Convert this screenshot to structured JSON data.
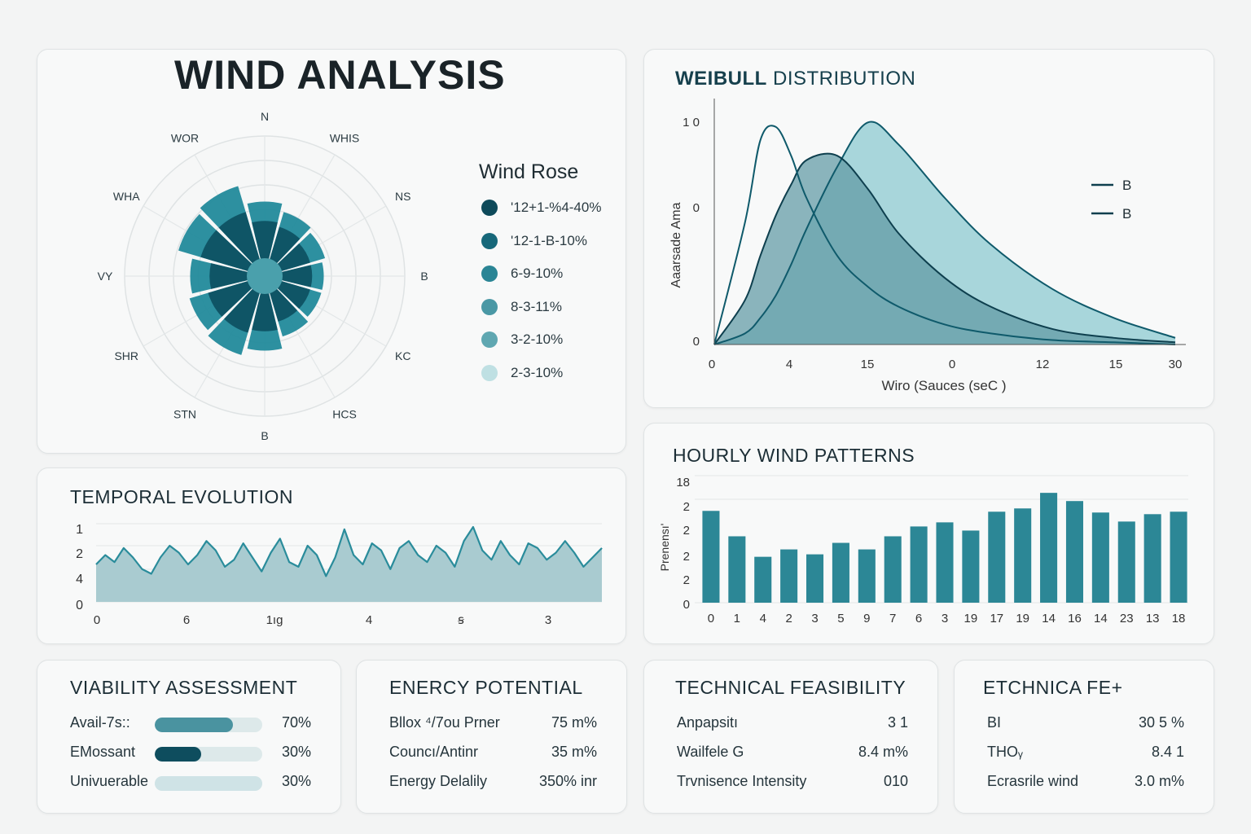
{
  "wind_analysis": {
    "title": "WIND ANALYSIS",
    "directions": [
      "N",
      "WHIS",
      "NS",
      "B",
      "KC",
      "HCS",
      "B",
      "STN",
      "SHR",
      "VY",
      "WHA",
      "WOR"
    ],
    "legend_title": "Wind Rose",
    "legend": [
      {
        "label": "'12+1-%4-40%",
        "color": "#0e4a5a"
      },
      {
        "label": "'12-1-B-10%",
        "color": "#17687a"
      },
      {
        "label": "6-9-10%",
        "color": "#2a8595"
      },
      {
        "label": "8-3-11%",
        "color": "#4a98a5"
      },
      {
        "label": "3-2-10%",
        "color": "#5fa7b1"
      },
      {
        "label": "2-3-10%",
        "color": "#bfe0e3"
      }
    ]
  },
  "weibull": {
    "title_bold": "WEIBULL",
    "title_rest": " DISTRIBUTION",
    "legend": [
      "B",
      "B"
    ],
    "colors": {
      "stroke": "#0f5a6b",
      "fill_a": "#a8d6db",
      "fill_b": "#5f98a4"
    }
  },
  "temporal": {
    "title": "TEMPORAL EVOLUTION",
    "color": "#2a8c9b",
    "fill": "#a9cbd0"
  },
  "hourly": {
    "title": "HOURLY WIND PATTERNS",
    "color": "#2c8796"
  },
  "viability": {
    "title": "VIABILITY ASSESSMENT",
    "rows": [
      {
        "label": "Avail-7s::",
        "value": "70%",
        "level": 0.73,
        "color": "#4a93a0"
      },
      {
        "label": "EMossant",
        "value": "30%",
        "level": 0.43,
        "color": "#0e4d5e"
      },
      {
        "label": "Univuerable",
        "value": "30%",
        "level": 1.0,
        "color": "#cfe3e6"
      }
    ]
  },
  "energy": {
    "title": "ENERCY POTENTIAL",
    "rows": [
      {
        "label": "Bllox ⁴/7ou Prner",
        "value": "75 m%"
      },
      {
        "label": "Councı/Antinr",
        "value": "35 m%"
      },
      {
        "label": "Energy Delalily",
        "value": "350% inr"
      }
    ]
  },
  "technical": {
    "title": "TECHNICAL FEASIBILITY",
    "rows": [
      {
        "label": "Anpapsitı",
        "value": "3 1"
      },
      {
        "label": "Wailfele G",
        "value": "8.4 m%"
      },
      {
        "label": "Trvnisence Intensity",
        "value": "010"
      }
    ]
  },
  "etchnica": {
    "title": "ETCHNICA FE+",
    "rows": [
      {
        "label": "BI",
        "value": "30 5 %"
      },
      {
        "label": "THOᵧ",
        "value": "8.4 1"
      },
      {
        "label": "Ecrasrile wind",
        "value": "3.0 m%"
      }
    ]
  },
  "chart_data": [
    {
      "type": "bar",
      "title": "Wind Rose",
      "categories": [
        "N",
        "WHIS",
        "NS",
        "B",
        "KC",
        "HCS",
        "B",
        "STN",
        "SHR",
        "VY",
        "WHA",
        "WOR"
      ],
      "series": [
        {
          "name": "'12+1-%4-40%",
          "values": [
            0.7,
            0.6,
            0.55,
            0.5,
            0.5,
            0.55,
            0.7,
            0.8,
            0.75,
            0.7,
            0.9,
            0.95
          ]
        },
        {
          "name": "'12-1-B-10%",
          "values": [
            0.45,
            0.4,
            0.35,
            0.35,
            0.35,
            0.35,
            0.45,
            0.5,
            0.5,
            0.45,
            0.6,
            0.6
          ]
        }
      ]
    },
    {
      "type": "area",
      "title": "WEIBULL DISTRIBUTION",
      "ylabel": "Aaarsade Ama",
      "xlabel": "Wiro (Sauces (seC )",
      "x_tick_labels": [
        "0",
        "4",
        "15",
        "0",
        "12",
        "15",
        "30"
      ],
      "y_tick_labels": [
        "1 0",
        "0",
        "0"
      ],
      "x": [
        0,
        2,
        3,
        4,
        5,
        6,
        8,
        10,
        12,
        15,
        18,
        22,
        26,
        30
      ],
      "series": [
        {
          "name": "",
          "values": [
            0,
            0.55,
            0.92,
            0.98,
            0.85,
            0.66,
            0.4,
            0.26,
            0.17,
            0.09,
            0.05,
            0.02,
            0.01,
            0
          ]
        },
        {
          "name": "",
          "values": [
            0,
            0.2,
            0.4,
            0.58,
            0.72,
            0.83,
            0.85,
            0.7,
            0.5,
            0.3,
            0.17,
            0.07,
            0.03,
            0.01
          ]
        },
        {
          "name": "",
          "values": [
            0,
            0.05,
            0.12,
            0.22,
            0.36,
            0.52,
            0.8,
            1.0,
            0.9,
            0.66,
            0.45,
            0.25,
            0.12,
            0.03
          ]
        }
      ],
      "ylim": [
        0,
        1.1
      ]
    },
    {
      "type": "area",
      "title": "TEMPORAL EVOLUTION",
      "y_tick_labels": [
        "1",
        "2",
        "4",
        "0"
      ],
      "x_tick_labels": [
        "0",
        "6",
        "1ıg",
        "4",
        "ꞩ",
        "3"
      ],
      "values": [
        1.6,
        2.0,
        1.7,
        2.3,
        1.9,
        1.4,
        1.2,
        1.9,
        2.4,
        2.1,
        1.6,
        2.0,
        2.6,
        2.2,
        1.5,
        1.8,
        2.5,
        1.9,
        1.3,
        2.1,
        2.7,
        1.7,
        1.5,
        2.4,
        2.0,
        1.1,
        1.9,
        3.1,
        2.0,
        1.6,
        2.5,
        2.2,
        1.4,
        2.3,
        2.6,
        2.0,
        1.7,
        2.4,
        2.1,
        1.5,
        2.6,
        3.2,
        2.2,
        1.8,
        2.6,
        2.0,
        1.6,
        2.5,
        2.3,
        1.8,
        2.1,
        2.6,
        2.1,
        1.5,
        1.9,
        2.3
      ],
      "ylim": [
        0,
        4
      ]
    },
    {
      "type": "bar",
      "title": "HOURLY WIND PATTERNS",
      "ylabel": "Prenensı'",
      "y_tick_labels": [
        "18",
        "2",
        "2",
        "2",
        "2",
        "0"
      ],
      "categories": [
        "0",
        "1",
        "4",
        "2",
        "3",
        "5",
        "9",
        "7",
        "6",
        "3",
        "19",
        "17",
        "19",
        "14",
        "16",
        "14",
        "23",
        "13",
        "18"
      ],
      "values": [
        112,
        81,
        56,
        65,
        59,
        73,
        65,
        81,
        93,
        98,
        88,
        111,
        115,
        134,
        124,
        110,
        99,
        108,
        111
      ],
      "ylim": [
        0,
        155
      ]
    }
  ]
}
